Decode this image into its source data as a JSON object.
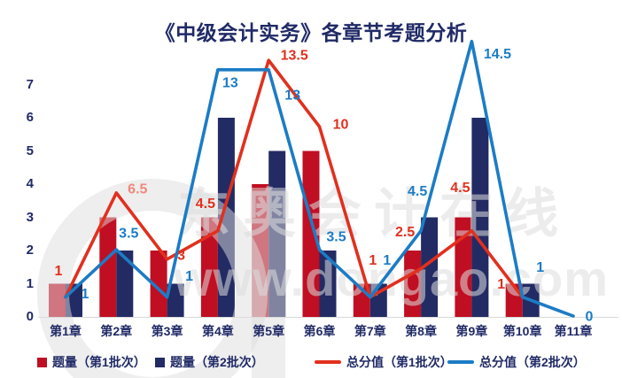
{
  "title": "《中级会计实务》各章节考题分析",
  "watermark": {
    "line1": "东奥会计在线",
    "line2": "www.dongao.com",
    "logo": "d-circle-logo",
    "color": "#DDDDDD"
  },
  "colors": {
    "navy_text": "#202A66",
    "axis_line": "#D9D9D9",
    "bar_batch1": "#C00E22",
    "bar_batch2": "#232B64",
    "line_batch1": "#E1301E",
    "line_batch2": "#1C7CC5",
    "muted_red_label": "#F0887B",
    "background": "#FFFFFF"
  },
  "chart_data": {
    "type": "combo-bar-line",
    "title": "《中级会计实务》各章节考题分析",
    "categories": [
      "第1章",
      "第2章",
      "第3章",
      "第4章",
      "第5章",
      "第6章",
      "第7章",
      "第8章",
      "第9章",
      "第10章",
      "第11章"
    ],
    "y_axis": {
      "ticks": [
        0,
        1,
        2,
        3,
        4,
        5,
        6,
        7
      ],
      "range": [
        0,
        7
      ],
      "grid": false
    },
    "secondary_y_axis": {
      "visible": false,
      "range": [
        0,
        15
      ]
    },
    "legend_position": "bottom",
    "series": [
      {
        "name": "题量（第1批次）",
        "type": "bar",
        "axis": "primary",
        "color": "#C00E22",
        "values": [
          1,
          3,
          2,
          3,
          4,
          5,
          1,
          2,
          3,
          1,
          null
        ]
      },
      {
        "name": "题量（第2批次）",
        "type": "bar",
        "axis": "primary",
        "color": "#232B64",
        "values": [
          1,
          2,
          1,
          6,
          5,
          2,
          1,
          3,
          6,
          1,
          null
        ]
      },
      {
        "name": "总分值（第1批次）",
        "type": "line",
        "axis": "secondary",
        "color": "#E1301E",
        "values": [
          1,
          6.5,
          3,
          4.5,
          13.5,
          10,
          1,
          2.5,
          4.5,
          1,
          null
        ],
        "labels": [
          "1",
          "6.5",
          "3",
          "4.5",
          "13.5",
          "10",
          "1",
          "2.5",
          "4.5",
          "1",
          null
        ],
        "muted_label_indices": [
          1
        ]
      },
      {
        "name": "总分值（第2批次）",
        "type": "line",
        "axis": "secondary",
        "color": "#1C7CC5",
        "values": [
          1,
          3.5,
          1,
          13,
          13,
          3.5,
          1,
          4.5,
          14.5,
          1,
          0
        ],
        "labels": [
          "1",
          "3.5",
          "1",
          "13",
          "13",
          "3.5",
          "1",
          "4.5",
          "14.5",
          "1",
          "0"
        ],
        "muted_label_indices": []
      }
    ]
  }
}
